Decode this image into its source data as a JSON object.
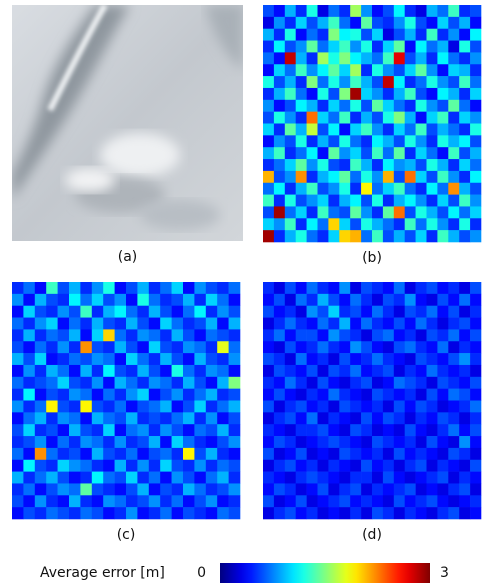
{
  "chart_data": [
    {
      "type": "image",
      "caption": "(a)"
    },
    {
      "type": "heatmap",
      "caption": "(b)",
      "values": [
        [
          0.6,
          0.4,
          0.9,
          0.5,
          1.2,
          0.3,
          0.7,
          0.5,
          1.6,
          0.8,
          0.4,
          0.6,
          1.1,
          0.5,
          0.3,
          0.9,
          0.7,
          1.3,
          0.5,
          0.6
        ],
        [
          0.3,
          0.8,
          0.5,
          1.0,
          0.6,
          0.9,
          1.3,
          0.7,
          0.4,
          1.4,
          0.6,
          0.5,
          0.8,
          1.2,
          0.6,
          0.4,
          1.0,
          0.6,
          0.9,
          0.4
        ],
        [
          0.9,
          0.5,
          1.2,
          0.4,
          0.7,
          0.5,
          1.5,
          1.1,
          1.2,
          0.6,
          1.0,
          0.3,
          0.6,
          0.9,
          0.5,
          1.3,
          0.5,
          0.8,
          0.4,
          1.1
        ],
        [
          0.5,
          1.1,
          0.6,
          0.8,
          1.4,
          0.7,
          1.0,
          1.3,
          0.8,
          1.2,
          0.5,
          1.0,
          1.4,
          0.4,
          1.1,
          0.7,
          0.9,
          0.3,
          1.2,
          0.6
        ],
        [
          0.7,
          0.4,
          2.8,
          0.9,
          0.5,
          1.6,
          1.2,
          1.5,
          1.1,
          0.9,
          0.7,
          1.3,
          2.7,
          0.6,
          0.9,
          0.5,
          1.1,
          0.7,
          0.5,
          0.8
        ],
        [
          0.4,
          1.0,
          0.7,
          1.3,
          0.8,
          1.1,
          1.4,
          1.0,
          1.6,
          0.5,
          1.2,
          0.8,
          0.6,
          1.0,
          1.4,
          0.8,
          0.4,
          1.0,
          0.9,
          0.5
        ],
        [
          1.2,
          0.6,
          0.9,
          0.5,
          1.5,
          0.7,
          1.2,
          0.8,
          1.3,
          0.9,
          0.6,
          2.8,
          1.1,
          0.5,
          0.7,
          1.2,
          0.8,
          0.6,
          1.3,
          0.7
        ],
        [
          0.5,
          0.9,
          1.3,
          0.7,
          0.4,
          1.2,
          0.6,
          1.5,
          2.9,
          1.0,
          0.8,
          0.5,
          0.9,
          1.3,
          0.6,
          0.4,
          1.1,
          0.9,
          0.5,
          1.0
        ],
        [
          0.8,
          0.4,
          0.6,
          1.1,
          0.9,
          0.5,
          1.0,
          0.7,
          1.2,
          0.6,
          1.4,
          1.0,
          0.7,
          0.5,
          1.2,
          0.8,
          0.6,
          1.4,
          0.7,
          0.4
        ],
        [
          0.6,
          1.2,
          0.8,
          0.5,
          2.3,
          1.0,
          0.7,
          1.3,
          0.5,
          0.9,
          0.6,
          1.2,
          1.5,
          0.9,
          0.4,
          1.0,
          1.3,
          0.5,
          1.0,
          0.8
        ],
        [
          1.0,
          0.5,
          1.4,
          0.9,
          1.7,
          0.6,
          1.1,
          0.4,
          1.0,
          1.3,
          0.8,
          0.5,
          1.0,
          0.7,
          1.3,
          0.6,
          0.9,
          0.7,
          0.5,
          1.2
        ],
        [
          0.4,
          0.8,
          0.6,
          1.2,
          0.5,
          0.9,
          0.6,
          1.2,
          0.7,
          0.5,
          1.1,
          0.9,
          0.6,
          1.2,
          0.8,
          0.5,
          1.2,
          0.9,
          1.1,
          0.6
        ],
        [
          0.9,
          1.3,
          0.5,
          0.7,
          1.1,
          0.4,
          1.4,
          0.8,
          1.0,
          0.6,
          1.3,
          0.7,
          1.4,
          0.5,
          1.0,
          0.7,
          0.4,
          1.3,
          0.6,
          0.9
        ],
        [
          0.5,
          0.7,
          1.0,
          1.4,
          0.8,
          1.2,
          0.6,
          0.5,
          1.3,
          0.9,
          0.5,
          1.1,
          0.8,
          0.9,
          0.6,
          1.2,
          0.9,
          0.5,
          1.0,
          0.7
        ],
        [
          2.1,
          0.6,
          0.8,
          2.2,
          0.5,
          0.9,
          1.1,
          1.4,
          0.7,
          1.2,
          0.8,
          2.1,
          0.6,
          2.3,
          1.0,
          0.6,
          1.3,
          0.8,
          0.5,
          1.1
        ],
        [
          0.7,
          1.1,
          0.5,
          0.9,
          1.3,
          0.6,
          0.8,
          1.2,
          0.5,
          1.9,
          0.7,
          1.0,
          1.3,
          0.7,
          0.5,
          1.1,
          0.7,
          2.2,
          0.9,
          0.6
        ],
        [
          1.3,
          0.5,
          1.2,
          0.6,
          0.8,
          1.0,
          0.5,
          0.9,
          1.1,
          0.6,
          1.2,
          0.5,
          0.9,
          1.1,
          0.8,
          0.5,
          1.0,
          0.6,
          1.3,
          0.8
        ],
        [
          0.6,
          2.9,
          0.7,
          1.0,
          0.5,
          1.3,
          0.7,
          0.6,
          1.4,
          0.8,
          0.5,
          1.4,
          2.3,
          0.6,
          1.2,
          0.9,
          0.6,
          1.1,
          0.7,
          1.0
        ],
        [
          1.0,
          0.8,
          1.3,
          0.5,
          1.1,
          0.7,
          2.0,
          1.0,
          0.6,
          1.2,
          0.9,
          0.7,
          0.5,
          1.3,
          0.7,
          1.2,
          0.8,
          0.5,
          1.2,
          0.5
        ],
        [
          2.9,
          0.5,
          0.9,
          1.2,
          0.7,
          0.5,
          1.0,
          2.0,
          2.1,
          0.7,
          1.3,
          0.6,
          0.9,
          0.6,
          1.0,
          0.5,
          1.3,
          0.9,
          0.6,
          0.8
        ]
      ]
    },
    {
      "type": "heatmap",
      "caption": "(c)",
      "values": [
        [
          0.5,
          0.7,
          0.4,
          1.3,
          0.6,
          0.9,
          0.5,
          0.8,
          1.2,
          0.4,
          0.6,
          0.9,
          0.5,
          0.7,
          1.0,
          0.4,
          0.8,
          0.6,
          0.5,
          0.7
        ],
        [
          0.8,
          0.4,
          0.9,
          0.6,
          0.5,
          1.1,
          0.7,
          1.0,
          0.6,
          0.8,
          0.4,
          1.2,
          0.7,
          0.5,
          0.6,
          0.9,
          0.5,
          1.0,
          0.7,
          0.4
        ],
        [
          0.4,
          1.0,
          0.6,
          0.5,
          0.8,
          0.6,
          1.3,
          0.5,
          0.9,
          1.1,
          0.7,
          0.5,
          0.9,
          0.6,
          0.4,
          0.7,
          1.1,
          0.5,
          0.8,
          0.6
        ],
        [
          0.7,
          0.5,
          0.8,
          1.0,
          0.4,
          0.7,
          0.5,
          0.9,
          0.6,
          0.5,
          0.9,
          0.6,
          0.4,
          1.0,
          0.7,
          0.5,
          0.6,
          0.9,
          0.4,
          0.9
        ],
        [
          0.5,
          0.9,
          0.5,
          0.7,
          0.6,
          0.9,
          0.4,
          1.0,
          2.0,
          0.7,
          0.5,
          0.8,
          0.7,
          0.5,
          0.9,
          0.6,
          0.4,
          0.7,
          0.6,
          0.5
        ],
        [
          0.6,
          0.4,
          0.7,
          0.5,
          0.8,
          0.5,
          2.2,
          0.6,
          0.5,
          0.9,
          0.6,
          0.4,
          1.0,
          0.6,
          0.5,
          0.8,
          0.7,
          0.5,
          1.8,
          0.7
        ],
        [
          0.9,
          0.6,
          1.0,
          0.4,
          0.5,
          0.7,
          0.6,
          0.8,
          0.7,
          0.4,
          1.0,
          0.7,
          0.5,
          0.9,
          0.6,
          0.4,
          0.9,
          0.6,
          0.5,
          0.8
        ],
        [
          0.4,
          0.8,
          0.5,
          0.9,
          0.7,
          0.4,
          0.9,
          0.5,
          1.1,
          0.6,
          0.5,
          0.9,
          0.6,
          0.4,
          1.2,
          0.7,
          0.5,
          0.8,
          0.7,
          0.4
        ],
        [
          0.7,
          0.5,
          0.6,
          0.7,
          1.0,
          0.6,
          0.5,
          0.8,
          0.4,
          0.9,
          0.7,
          0.5,
          0.8,
          0.7,
          0.5,
          0.9,
          0.6,
          0.4,
          0.9,
          1.5
        ],
        [
          0.5,
          1.1,
          0.4,
          0.6,
          0.5,
          0.8,
          0.7,
          0.4,
          0.7,
          0.5,
          0.8,
          1.0,
          0.4,
          0.6,
          0.8,
          0.5,
          0.7,
          0.9,
          0.5,
          0.6
        ],
        [
          0.8,
          0.5,
          0.7,
          1.9,
          0.6,
          0.5,
          1.9,
          0.6,
          0.5,
          0.7,
          0.4,
          0.6,
          0.7,
          0.9,
          0.4,
          0.6,
          1.0,
          0.5,
          0.7,
          0.9
        ],
        [
          0.4,
          0.7,
          0.9,
          0.5,
          0.8,
          0.7,
          0.4,
          0.9,
          0.7,
          0.6,
          0.9,
          0.5,
          0.6,
          0.5,
          0.7,
          0.9,
          0.5,
          0.8,
          0.4,
          0.6
        ],
        [
          0.6,
          1.0,
          0.5,
          0.6,
          0.4,
          0.9,
          0.6,
          0.5,
          1.0,
          0.4,
          0.7,
          0.8,
          0.5,
          0.8,
          0.6,
          0.4,
          0.7,
          0.6,
          0.9,
          0.5
        ],
        [
          0.5,
          0.6,
          0.8,
          0.4,
          0.7,
          0.5,
          0.8,
          0.7,
          0.5,
          0.8,
          0.5,
          0.6,
          0.9,
          0.4,
          1.0,
          0.7,
          0.5,
          0.4,
          0.6,
          0.8
        ],
        [
          0.7,
          0.4,
          2.2,
          0.7,
          0.5,
          0.6,
          0.4,
          0.9,
          0.6,
          0.5,
          0.7,
          0.4,
          0.6,
          0.7,
          0.5,
          1.9,
          0.6,
          0.9,
          0.5,
          0.4
        ],
        [
          0.4,
          1.1,
          0.6,
          0.5,
          1.0,
          0.8,
          0.7,
          0.5,
          0.4,
          0.9,
          0.5,
          0.8,
          0.5,
          1.0,
          0.6,
          0.5,
          0.8,
          0.5,
          0.7,
          0.6
        ],
        [
          0.9,
          0.5,
          0.7,
          0.9,
          0.6,
          0.4,
          0.5,
          1.1,
          0.7,
          0.6,
          1.0,
          0.5,
          0.7,
          0.4,
          0.8,
          0.6,
          0.4,
          0.7,
          0.9,
          0.5
        ],
        [
          0.5,
          0.7,
          0.4,
          0.6,
          0.8,
          0.7,
          1.4,
          0.6,
          0.5,
          0.4,
          0.6,
          0.9,
          0.4,
          0.6,
          0.5,
          0.9,
          0.7,
          0.5,
          0.6,
          0.8
        ],
        [
          0.6,
          0.4,
          0.8,
          0.5,
          0.4,
          0.9,
          0.5,
          0.4,
          0.8,
          0.7,
          0.5,
          0.6,
          0.8,
          0.5,
          0.7,
          0.4,
          0.6,
          0.8,
          0.4,
          0.5
        ],
        [
          0.4,
          0.6,
          0.5,
          0.7,
          0.6,
          0.5,
          0.7,
          0.6,
          0.4,
          0.5,
          0.8,
          0.4,
          0.5,
          0.7,
          0.4,
          0.6,
          0.5,
          0.4,
          0.7,
          0.6
        ]
      ]
    },
    {
      "type": "heatmap",
      "caption": "(d)",
      "values": [
        [
          0.5,
          0.3,
          0.6,
          0.4,
          0.7,
          0.5,
          0.4,
          0.8,
          0.3,
          0.6,
          0.5,
          0.4,
          0.7,
          0.3,
          0.5,
          0.6,
          0.4,
          0.5,
          0.3,
          0.6
        ],
        [
          0.4,
          0.6,
          0.3,
          0.7,
          0.5,
          0.9,
          0.6,
          0.4,
          0.7,
          0.5,
          0.3,
          0.6,
          0.5,
          0.8,
          0.4,
          0.3,
          0.6,
          0.4,
          0.7,
          0.4
        ],
        [
          0.6,
          0.4,
          0.5,
          0.3,
          0.8,
          0.6,
          1.0,
          0.5,
          0.6,
          0.4,
          0.7,
          0.5,
          0.3,
          0.6,
          0.5,
          0.7,
          0.4,
          0.6,
          0.3,
          0.5
        ],
        [
          0.3,
          0.5,
          0.7,
          0.5,
          0.4,
          0.7,
          0.5,
          0.9,
          0.4,
          0.7,
          0.5,
          0.4,
          0.6,
          0.4,
          0.7,
          0.5,
          0.3,
          0.5,
          0.6,
          0.4
        ],
        [
          0.5,
          0.7,
          0.4,
          0.6,
          0.6,
          0.4,
          0.8,
          0.6,
          0.5,
          0.3,
          0.6,
          0.7,
          0.4,
          0.5,
          0.3,
          0.6,
          0.5,
          0.7,
          0.4,
          0.6
        ],
        [
          0.4,
          0.3,
          0.6,
          0.4,
          0.5,
          0.7,
          0.5,
          0.4,
          0.8,
          0.6,
          0.4,
          0.3,
          0.6,
          0.7,
          0.5,
          0.4,
          0.7,
          0.3,
          0.5,
          0.4
        ],
        [
          0.6,
          0.5,
          0.3,
          0.7,
          0.4,
          0.5,
          0.3,
          0.6,
          0.4,
          0.5,
          0.7,
          0.5,
          0.4,
          0.3,
          0.6,
          0.5,
          0.4,
          0.6,
          0.8,
          0.5
        ],
        [
          0.3,
          0.6,
          0.5,
          0.4,
          0.6,
          0.3,
          0.6,
          0.5,
          0.7,
          0.4,
          0.5,
          0.6,
          0.3,
          0.5,
          0.4,
          0.7,
          0.5,
          0.4,
          0.5,
          0.3
        ],
        [
          0.5,
          0.4,
          0.7,
          0.5,
          0.3,
          0.6,
          0.4,
          0.3,
          0.5,
          0.6,
          0.3,
          0.4,
          0.7,
          0.6,
          0.5,
          0.3,
          0.6,
          0.5,
          0.4,
          0.6
        ],
        [
          0.4,
          0.6,
          0.4,
          0.3,
          0.5,
          0.4,
          0.7,
          0.5,
          0.4,
          0.3,
          0.6,
          0.5,
          0.4,
          0.5,
          0.3,
          0.6,
          0.4,
          0.7,
          0.6,
          0.4
        ],
        [
          0.6,
          0.3,
          0.5,
          0.6,
          0.4,
          0.5,
          0.3,
          0.6,
          0.5,
          0.4,
          0.5,
          0.3,
          0.6,
          0.4,
          0.6,
          0.5,
          0.3,
          0.4,
          0.5,
          0.7
        ],
        [
          0.3,
          0.5,
          0.6,
          0.4,
          0.7,
          0.3,
          0.5,
          0.4,
          0.3,
          0.6,
          0.4,
          0.6,
          0.5,
          0.3,
          0.5,
          0.4,
          0.6,
          0.5,
          0.3,
          0.5
        ],
        [
          0.5,
          0.4,
          0.3,
          0.5,
          0.5,
          0.6,
          0.4,
          0.3,
          0.6,
          0.5,
          0.3,
          0.4,
          0.3,
          0.6,
          0.4,
          0.3,
          0.5,
          0.7,
          0.4,
          0.6
        ],
        [
          0.4,
          0.6,
          0.5,
          0.3,
          0.4,
          0.5,
          0.6,
          0.5,
          0.4,
          0.3,
          0.6,
          0.5,
          0.4,
          0.5,
          0.3,
          0.6,
          0.4,
          0.3,
          0.8,
          0.4
        ],
        [
          0.6,
          0.3,
          0.4,
          0.6,
          0.3,
          0.4,
          0.3,
          0.6,
          0.5,
          0.4,
          0.5,
          0.3,
          0.6,
          0.4,
          0.5,
          0.4,
          0.3,
          0.6,
          0.5,
          0.3
        ],
        [
          0.3,
          0.5,
          0.6,
          0.4,
          0.5,
          0.3,
          0.5,
          0.4,
          0.3,
          0.6,
          0.4,
          0.5,
          0.3,
          0.5,
          0.6,
          0.3,
          0.5,
          0.4,
          0.3,
          0.6
        ],
        [
          0.5,
          0.4,
          0.3,
          0.5,
          0.6,
          0.5,
          0.4,
          0.3,
          0.5,
          0.5,
          0.3,
          0.6,
          0.4,
          0.3,
          0.4,
          0.5,
          0.6,
          0.3,
          0.5,
          0.4
        ],
        [
          0.4,
          0.6,
          0.5,
          0.3,
          0.4,
          0.6,
          0.3,
          0.5,
          0.6,
          0.3,
          0.5,
          0.4,
          0.5,
          0.6,
          0.3,
          0.4,
          0.3,
          0.5,
          0.6,
          0.3
        ],
        [
          0.6,
          0.3,
          0.4,
          0.6,
          0.3,
          0.4,
          0.5,
          0.6,
          0.4,
          0.5,
          0.4,
          0.3,
          0.6,
          0.4,
          0.5,
          0.6,
          0.4,
          0.3,
          0.4,
          0.5
        ],
        [
          0.3,
          0.5,
          0.6,
          0.4,
          0.5,
          0.3,
          0.4,
          0.3,
          0.5,
          0.3,
          0.6,
          0.5,
          0.3,
          0.5,
          0.4,
          0.3,
          0.5,
          0.6,
          0.3,
          0.4
        ]
      ]
    }
  ],
  "colorbar": {
    "label": "Average error [m]",
    "colormap": "jet",
    "zlim": [
      0,
      3
    ],
    "zticks": [
      0,
      3
    ]
  }
}
